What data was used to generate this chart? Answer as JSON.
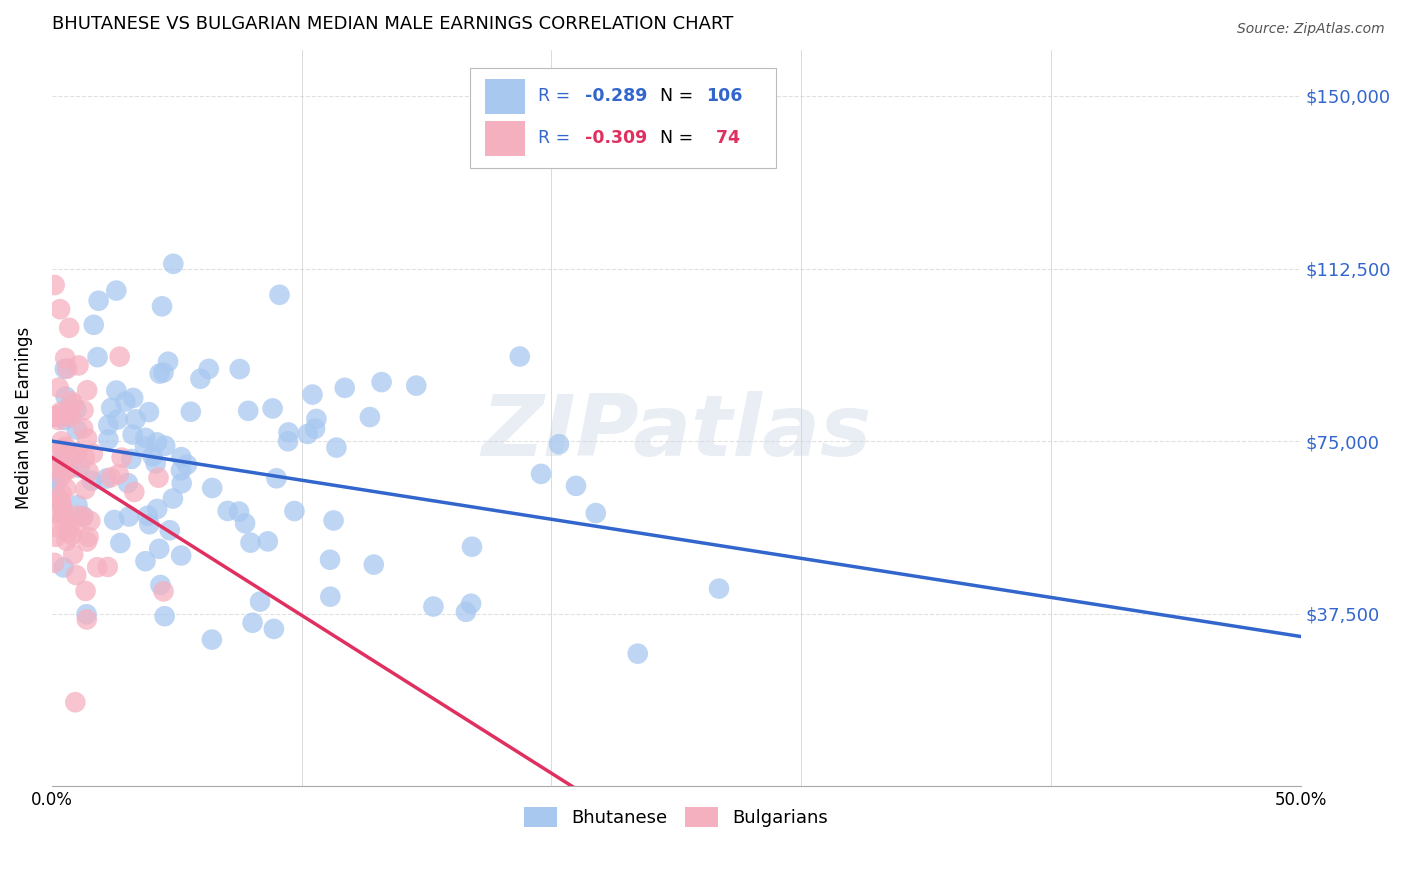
{
  "title": "BHUTANESE VS BULGARIAN MEDIAN MALE EARNINGS CORRELATION CHART",
  "source": "Source: ZipAtlas.com",
  "ylabel": "Median Male Earnings",
  "ytick_vals": [
    0,
    37500,
    75000,
    112500,
    150000
  ],
  "ytick_labels": [
    "",
    "$37,500",
    "$75,000",
    "$112,500",
    "$150,000"
  ],
  "xtick_vals": [
    0.0,
    0.5
  ],
  "xtick_labels": [
    "0.0%",
    "50.0%"
  ],
  "xmin": 0.0,
  "xmax": 0.5,
  "ymin": 0,
  "ymax": 160000,
  "blue_color": "#a8c8f0",
  "pink_color": "#f5b0c0",
  "blue_line_color": "#3366cc",
  "pink_line_color": "#e03060",
  "watermark": "ZIPatlas",
  "background_color": "#ffffff",
  "grid_color": "#cccccc",
  "legend_label1": "Bhutanese",
  "legend_label2": "Bulgarians",
  "legend_r1": "-0.289",
  "legend_n1": "106",
  "legend_r2": "-0.309",
  "legend_n2": "74",
  "legend_r_color": "#3366cc",
  "legend_n_label_color": "#000000",
  "legend_n_val_color": "#3366cc",
  "legend_r2_color": "#e03060"
}
